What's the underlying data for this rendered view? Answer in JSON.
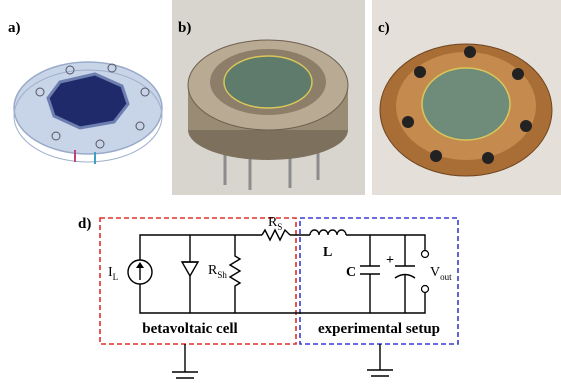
{
  "panels": [
    {
      "label": "a)"
    },
    {
      "label": "b)"
    },
    {
      "label": "c)"
    },
    {
      "label": "d)"
    }
  ],
  "circuit": {
    "components": {
      "current_source": {
        "main": "I",
        "sub": "L"
      },
      "shunt_resistor": {
        "main": "R",
        "sub": "Sh"
      },
      "series_resistor": {
        "main": "R",
        "sub": "S"
      },
      "inductor": {
        "main": "L"
      },
      "capacitor": {
        "main": "C"
      },
      "polarity": {
        "main": "+"
      },
      "output": {
        "main": "V",
        "sub": "out"
      }
    },
    "sections": [
      {
        "label": "betavoltaic cell"
      },
      {
        "label": "experimental setup"
      }
    ]
  }
}
